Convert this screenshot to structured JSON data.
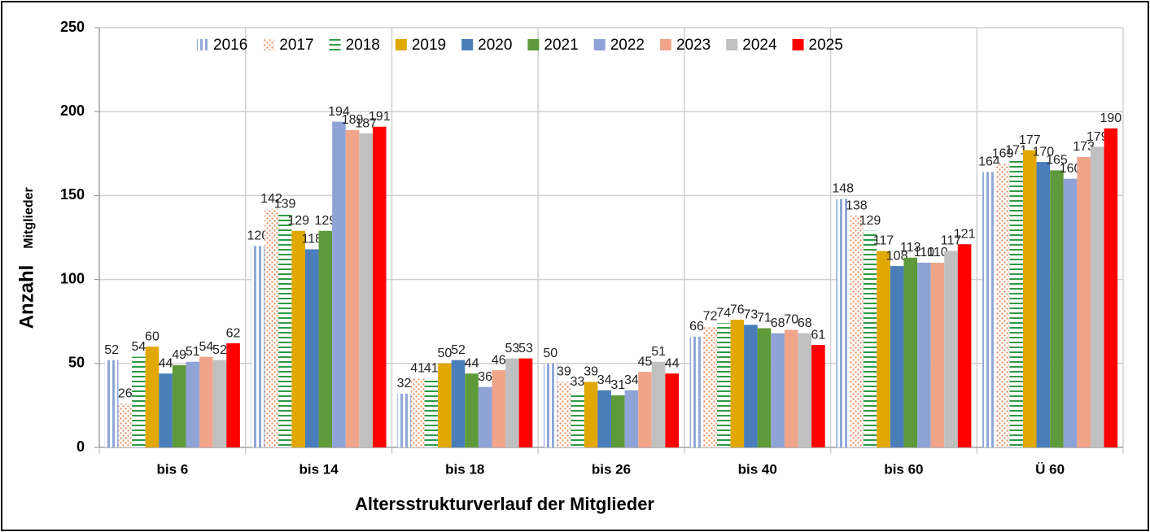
{
  "chart_data": {
    "type": "bar",
    "y_label": "Anzahl",
    "y_label_sub": "Mitglieder",
    "x_label": "Altersstrukturverlauf der Mitglieder",
    "categories": [
      "bis 6",
      "bis 14",
      "bis 18",
      "bis 26",
      "bis 40",
      "bis 60",
      "Ü 60"
    ],
    "series": [
      {
        "name": "2016",
        "color": "#8fa8d8",
        "pattern": "vertical-stripes",
        "values": [
          52,
          120,
          32,
          50,
          66,
          148,
          164
        ]
      },
      {
        "name": "2017",
        "color": "#e8946a",
        "pattern": "dots",
        "values": [
          26,
          142,
          41,
          39,
          72,
          138,
          169
        ]
      },
      {
        "name": "2018",
        "color": "#2f9a44",
        "pattern": "horizontal-stripes",
        "values": [
          54,
          139,
          41,
          33,
          74,
          129,
          171
        ]
      },
      {
        "name": "2019",
        "color": "#e0a800",
        "values": [
          60,
          129,
          50,
          39,
          76,
          117,
          177
        ]
      },
      {
        "name": "2020",
        "color": "#4a7ebb",
        "values": [
          44,
          118,
          52,
          34,
          73,
          108,
          170
        ]
      },
      {
        "name": "2021",
        "color": "#5e9a3a",
        "values": [
          49,
          129,
          44,
          31,
          71,
          113,
          165
        ]
      },
      {
        "name": "2022",
        "color": "#8fa3d6",
        "values": [
          51,
          194,
          36,
          34,
          68,
          110,
          160
        ]
      },
      {
        "name": "2023",
        "color": "#f0a58a",
        "values": [
          54,
          189,
          46,
          45,
          70,
          110,
          173
        ]
      },
      {
        "name": "2024",
        "color": "#c0c0c0",
        "values": [
          52,
          187,
          53,
          51,
          68,
          117,
          179
        ]
      },
      {
        "name": "2025",
        "color": "#ff0000",
        "values": [
          62,
          191,
          53,
          44,
          61,
          121,
          190
        ]
      }
    ],
    "ylim": [
      0,
      250
    ],
    "yticks": [
      0,
      50,
      100,
      150,
      200,
      250
    ],
    "grid": true,
    "legend": "top"
  }
}
